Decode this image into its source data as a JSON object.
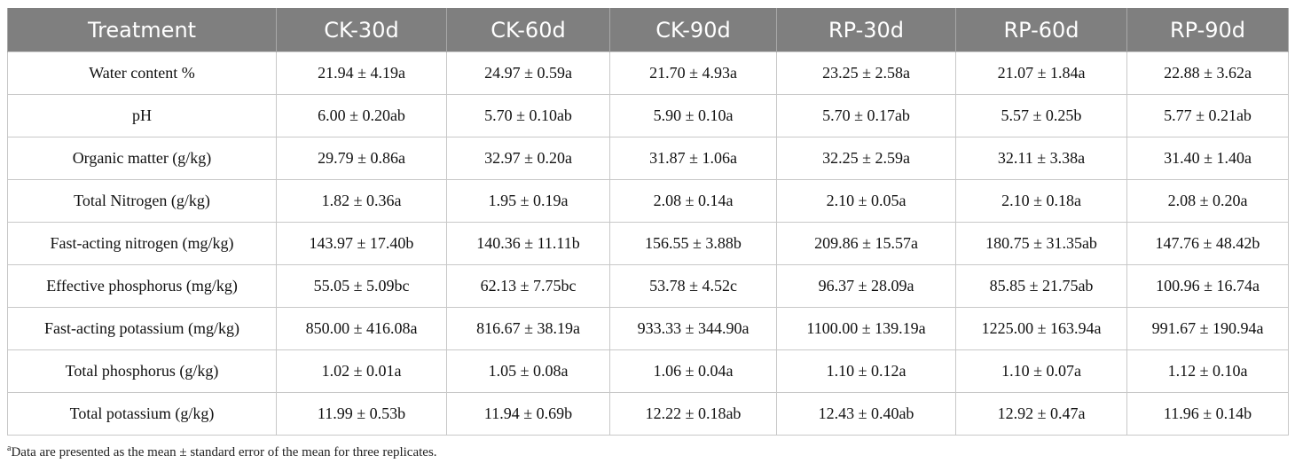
{
  "table": {
    "headers": [
      "Treatment",
      "CK-30d",
      "CK-60d",
      "CK-90d",
      "RP-30d",
      "RP-60d",
      "RP-90d"
    ],
    "rows": [
      [
        "Water content %",
        "21.94 ± 4.19a",
        "24.97 ± 0.59a",
        "21.70 ± 4.93a",
        "23.25 ± 2.58a",
        "21.07 ± 1.84a",
        "22.88 ± 3.62a"
      ],
      [
        "pH",
        "6.00 ± 0.20ab",
        "5.70 ± 0.10ab",
        "5.90 ± 0.10a",
        "5.70 ± 0.17ab",
        "5.57 ± 0.25b",
        "5.77 ± 0.21ab"
      ],
      [
        "Organic matter (g/kg)",
        "29.79 ± 0.86a",
        "32.97 ± 0.20a",
        "31.87 ± 1.06a",
        "32.25 ± 2.59a",
        "32.11 ± 3.38a",
        "31.40 ± 1.40a"
      ],
      [
        "Total Nitrogen (g/kg)",
        "1.82 ± 0.36a",
        "1.95 ± 0.19a",
        "2.08 ± 0.14a",
        "2.10 ± 0.05a",
        "2.10 ± 0.18a",
        "2.08 ± 0.20a"
      ],
      [
        "Fast-acting nitrogen (mg/kg)",
        "143.97 ± 17.40b",
        "140.36 ± 11.11b",
        "156.55 ± 3.88b",
        "209.86 ± 15.57a",
        "180.75 ± 31.35ab",
        "147.76 ± 48.42b"
      ],
      [
        "Effective phosphorus (mg/kg)",
        "55.05 ± 5.09bc",
        "62.13 ± 7.75bc",
        "53.78 ± 4.52c",
        "96.37 ± 28.09a",
        "85.85 ± 21.75ab",
        "100.96 ± 16.74a"
      ],
      [
        "Fast-acting potassium (mg/kg)",
        "850.00 ± 416.08a",
        "816.67 ± 38.19a",
        "933.33 ± 344.90a",
        "1100.00 ± 139.19a",
        "1225.00 ± 163.94a",
        "991.67 ± 190.94a"
      ],
      [
        "Total phosphorus (g/kg)",
        "1.02 ± 0.01a",
        "1.05 ± 0.08a",
        "1.06 ± 0.04a",
        "1.10 ± 0.12a",
        "1.10 ± 0.07a",
        "1.12 ± 0.10a"
      ],
      [
        "Total potassium (g/kg)",
        "11.99 ± 0.53b",
        "11.94 ± 0.69b",
        "12.22 ± 0.18ab",
        "12.43 ± 0.40ab",
        "12.92 ± 0.47a",
        "11.96 ± 0.14b"
      ]
    ]
  },
  "footnote": {
    "marker": "a",
    "text": "Data are presented as the mean ± standard error of the mean for three replicates."
  }
}
